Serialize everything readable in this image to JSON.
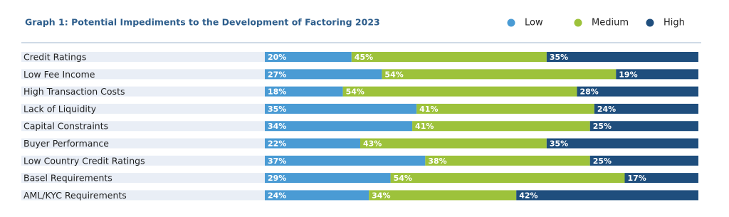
{
  "chart_data": {
    "type": "stacked-bar-horizontal",
    "title": "Graph 1: Potential Impediments to the Development of Factoring 2023",
    "categories": [
      "Credit Ratings",
      "Low Fee Income",
      "High Transaction Costs",
      "Lack of Liquidity",
      "Capital Constraints",
      "Buyer Performance",
      "Low Country Credit Ratings",
      "Basel Requirements",
      "AML/KYC Requirements"
    ],
    "series": [
      {
        "name": "Low",
        "color": "#4a9bd4",
        "values": [
          20,
          27,
          18,
          35,
          34,
          22,
          37,
          29,
          24
        ],
        "value_labels": [
          "20%",
          "27%",
          "18%",
          "35%",
          "34%",
          "22%",
          "37%",
          "29%",
          "24%"
        ]
      },
      {
        "name": "Medium",
        "color": "#9dc23b",
        "values": [
          45,
          54,
          54,
          41,
          41,
          43,
          38,
          54,
          34
        ],
        "value_labels": [
          "45%",
          "54%",
          "54%",
          "41%",
          "41%",
          "43%",
          "38%",
          "54%",
          "34%"
        ]
      },
      {
        "name": "High",
        "color": "#1f4e7d",
        "values": [
          35,
          19,
          28,
          24,
          25,
          35,
          25,
          17,
          42
        ],
        "value_labels": [
          "35%",
          "19%",
          "28%",
          "24%",
          "25%",
          "35%",
          "25%",
          "17%",
          "42%"
        ]
      }
    ],
    "legend": "top-right"
  }
}
